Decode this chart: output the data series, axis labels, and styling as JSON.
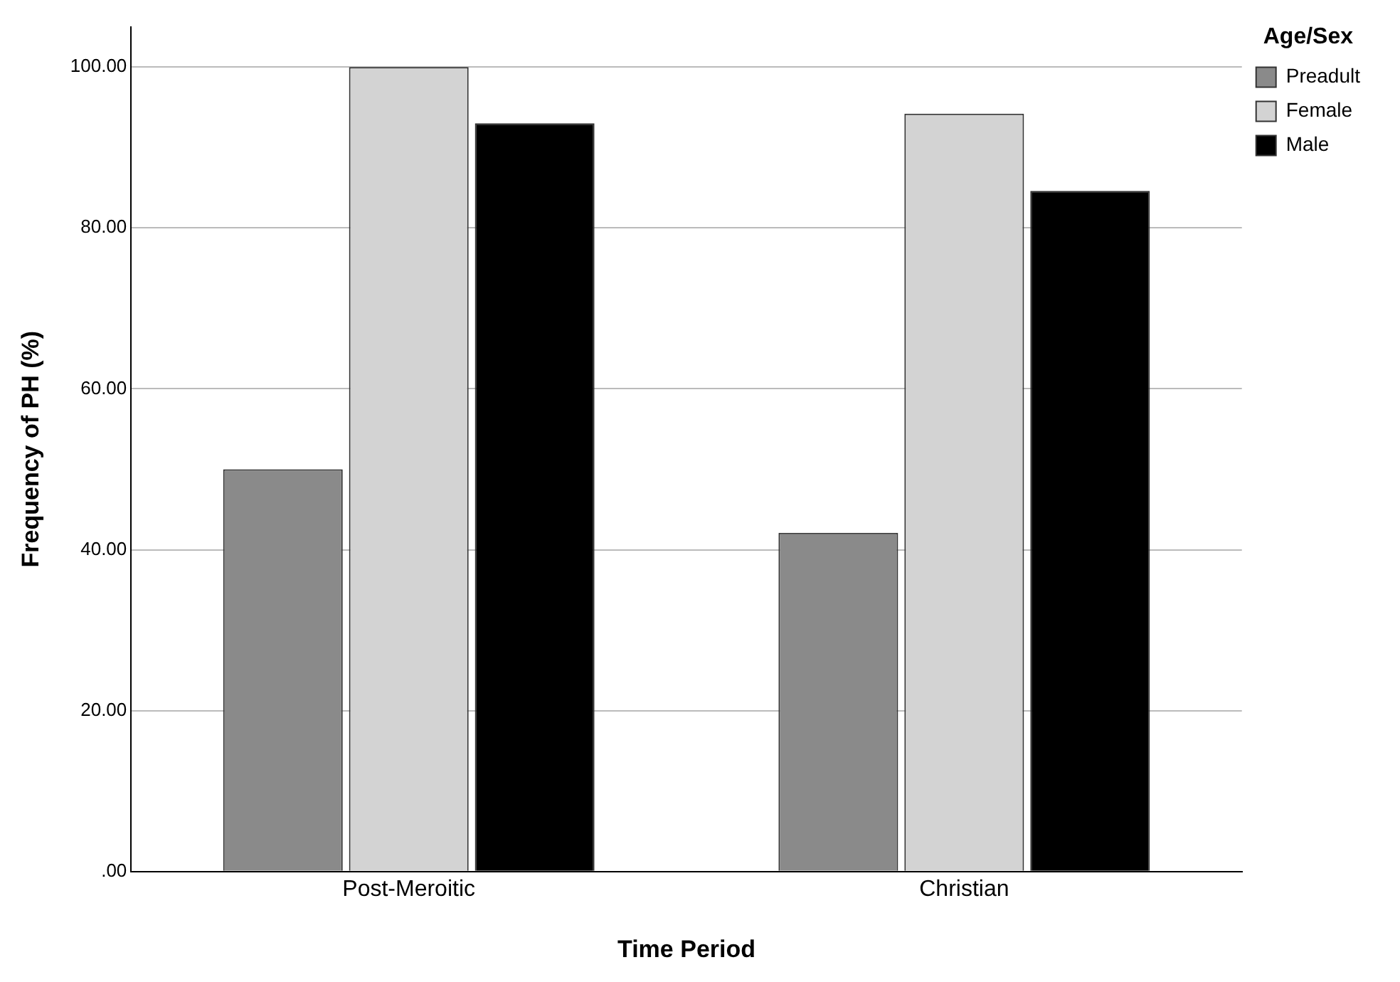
{
  "chart_data": {
    "type": "bar",
    "xlabel": "Time Period",
    "ylabel": "Frequency of PH (%)",
    "legend_title": "Age/Sex",
    "legend": "top right",
    "grid": "y",
    "categories": [
      "Post-Meroitic",
      "Christian"
    ],
    "series": [
      {
        "name": "Preadult",
        "color": "#8a8a8a",
        "values": [
          50,
          42.1
        ]
      },
      {
        "name": "Female",
        "color": "#d3d3d3",
        "values": [
          100,
          94.2
        ]
      },
      {
        "name": "Male",
        "color": "#000000",
        "values": [
          93,
          84.6
        ]
      }
    ],
    "ylim": [
      0,
      105
    ],
    "yticks": [
      {
        "value": 0,
        "label": ".00"
      },
      {
        "value": 20,
        "label": "20.00"
      },
      {
        "value": 40,
        "label": "40.00"
      },
      {
        "value": 60,
        "label": "60.00"
      },
      {
        "value": 80,
        "label": "80.00"
      },
      {
        "value": 100,
        "label": "100.00"
      }
    ]
  }
}
